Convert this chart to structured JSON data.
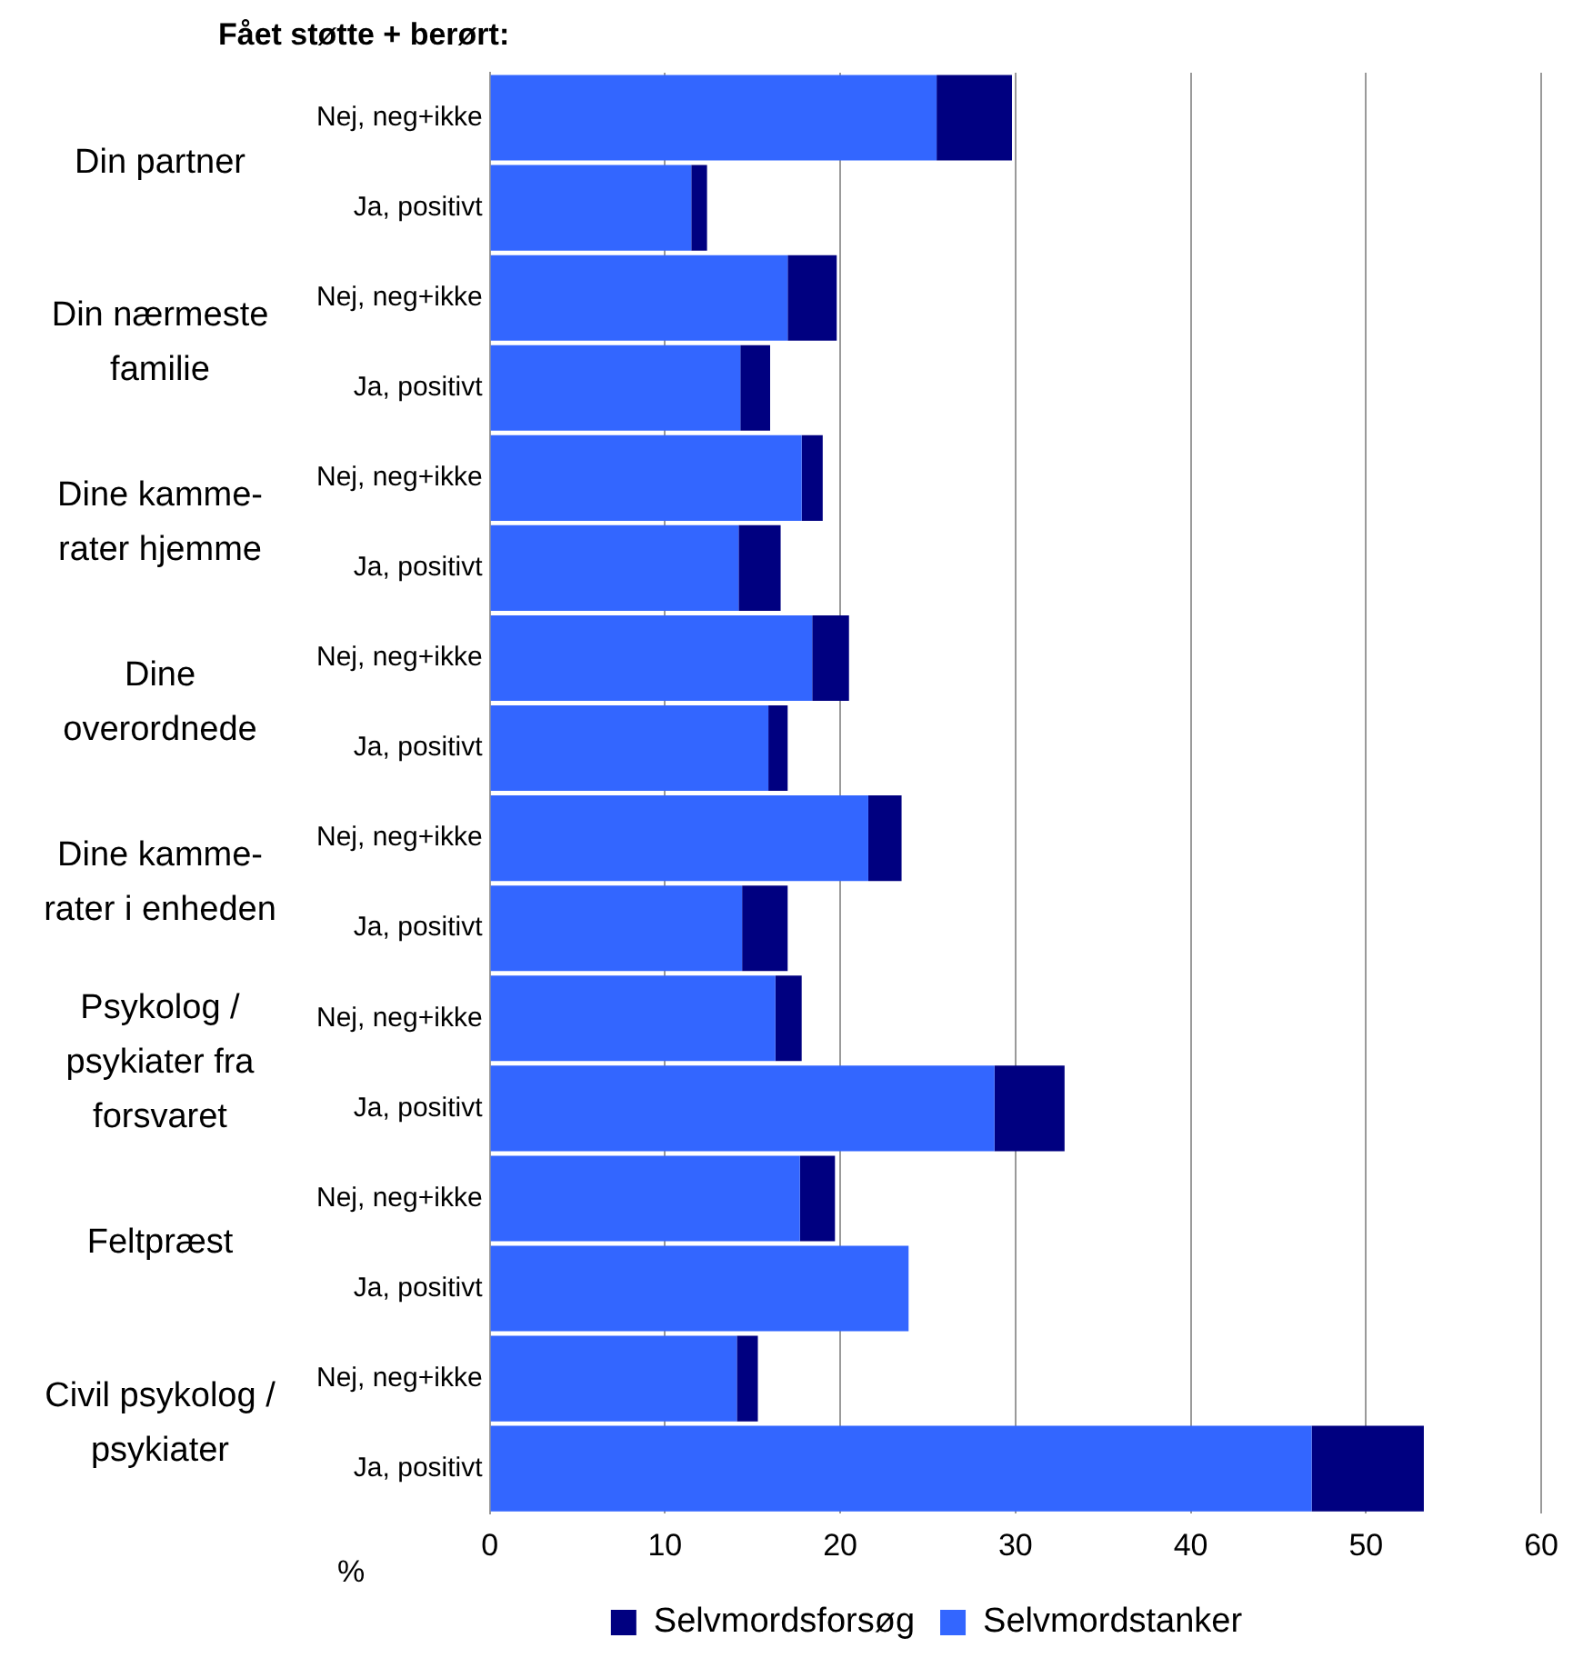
{
  "chart_data": {
    "type": "bar",
    "orientation": "horizontal",
    "stacked": true,
    "title": "Fået støtte + berørt:",
    "xlabel": "%",
    "categories": [
      "Nej, neg+ikke",
      "Ja, positivt",
      "Nej, neg+ikke",
      "Ja, positivt",
      "Nej, neg+ikke",
      "Ja, positivt",
      "Nej, neg+ikke",
      "Ja, positivt",
      "Nej, neg+ikke",
      "Ja, positivt",
      "Nej, neg+ikke",
      "Ja, positivt",
      "Nej, neg+ikke",
      "Ja, positivt",
      "Nej, neg+ikke",
      "Ja, positivt"
    ],
    "series": [
      {
        "name": "Selvmordstanker",
        "color": "#3366ff",
        "values": [
          25.5,
          11.5,
          17.0,
          14.3,
          17.8,
          14.2,
          18.4,
          15.9,
          21.6,
          14.4,
          16.3,
          28.8,
          17.7,
          23.9,
          14.1,
          46.9
        ]
      },
      {
        "name": "Selvmordsforsøg",
        "color": "#000080",
        "values": [
          4.3,
          0.9,
          2.8,
          1.7,
          1.2,
          2.4,
          2.1,
          1.1,
          1.9,
          2.6,
          1.5,
          4.0,
          2.0,
          0,
          1.2,
          6.4
        ]
      }
    ],
    "annotations": [
      "Din partner",
      "Din nærmeste\nfamilie",
      "Dine kamme-\nrater hjemme",
      "Dine\noverordnede",
      "Dine kamme-\nrater i enheden",
      "Psykolog /\npsykiater fra\nforsvaret",
      "Feltpræst",
      "Civil psykolog /\npsykiater"
    ],
    "xlim": [
      0,
      60
    ],
    "xticks": [
      0,
      10,
      20,
      30,
      40,
      50,
      60
    ],
    "grid": "x",
    "legend": "bottom"
  }
}
